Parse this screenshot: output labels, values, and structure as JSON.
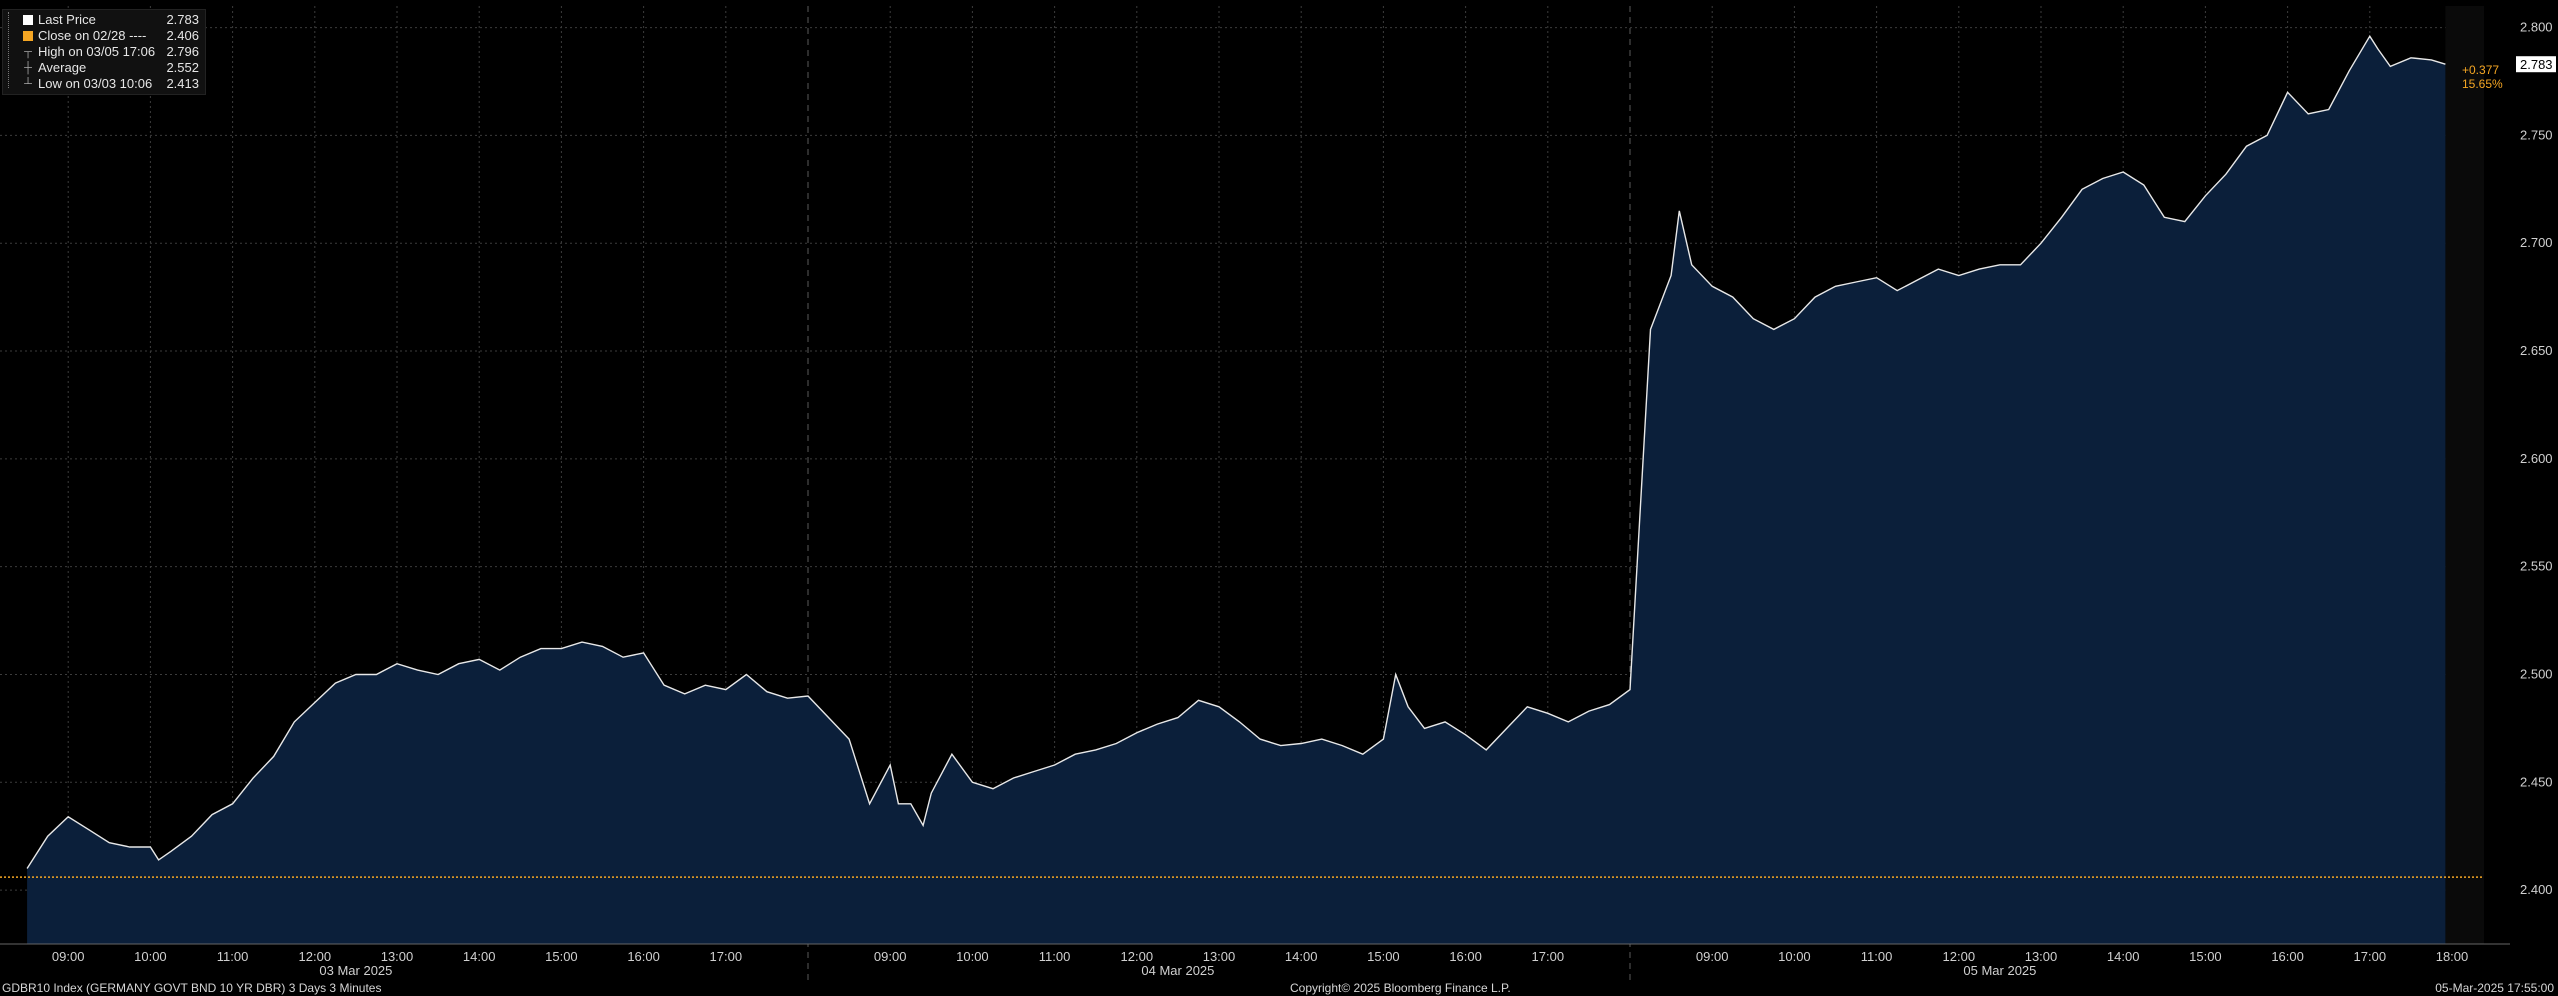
{
  "legend": {
    "items": [
      {
        "label": "Last Price",
        "value": "2.783",
        "marker": "white-square",
        "color": "#ffffff"
      },
      {
        "label": "Close on 02/28 ----",
        "value": "2.406",
        "marker": "orange-square",
        "color": "#f5a623"
      },
      {
        "label": "High on 03/05 17:06",
        "value": "2.796",
        "marker": "high-marker-icon"
      },
      {
        "label": "Average",
        "value": "2.552",
        "marker": "average-marker-icon"
      },
      {
        "label": "Low on 03/03 10:06",
        "value": "2.413",
        "marker": "low-marker-icon"
      }
    ]
  },
  "last_price_tag": "2.783",
  "change_tag": {
    "abs": "+0.377",
    "pct": "15.65%",
    "color": "#f5a623"
  },
  "footer": {
    "left": "GDBR10 Index (GERMANY GOVT BND 10 YR DBR) 3 Days 3 Minutes",
    "center": "Copyright© 2025 Bloomberg Finance L.P.",
    "right": "05-Mar-2025 17:55:00"
  },
  "colors": {
    "background": "#000000",
    "area_fill": "#0b1f3a",
    "line": "#e8e8e8",
    "reference": "#f5a623",
    "grid": "#3c3c3c"
  },
  "chart_data": {
    "type": "area",
    "y_axis_side": "right",
    "ylim": [
      2.375,
      2.81
    ],
    "yticks": [
      "2.400",
      "2.450",
      "2.500",
      "2.550",
      "2.600",
      "2.650",
      "2.700",
      "2.750",
      "2.800"
    ],
    "reference_line": {
      "value": 2.406,
      "label": "Close on 02/28",
      "color": "#f5a623",
      "style": "dotted"
    },
    "grid": true,
    "days": [
      {
        "date": "03 Mar 2025",
        "ticks": [
          "09:00",
          "10:00",
          "11:00",
          "12:00",
          "13:00",
          "14:00",
          "15:00",
          "16:00",
          "17:00"
        ]
      },
      {
        "date": "04 Mar 2025",
        "ticks": [
          "09:00",
          "10:00",
          "11:00",
          "12:00",
          "13:00",
          "14:00",
          "15:00",
          "16:00",
          "17:00"
        ]
      },
      {
        "date": "05 Mar 2025",
        "ticks": [
          "09:00",
          "10:00",
          "11:00",
          "12:00",
          "13:00",
          "14:00",
          "15:00",
          "16:00",
          "17:00",
          "18:00"
        ]
      }
    ],
    "series": [
      {
        "values": [
          [
            [
              8.5,
              2.41
            ],
            [
              8.75,
              2.425
            ],
            [
              9.0,
              2.434
            ],
            [
              9.25,
              2.428
            ],
            [
              9.5,
              2.422
            ],
            [
              9.75,
              2.42
            ],
            [
              10.0,
              2.42
            ],
            [
              10.1,
              2.414
            ],
            [
              10.25,
              2.418
            ],
            [
              10.5,
              2.425
            ],
            [
              10.75,
              2.435
            ],
            [
              11.0,
              2.44
            ],
            [
              11.25,
              2.452
            ],
            [
              11.5,
              2.462
            ],
            [
              11.75,
              2.478
            ],
            [
              12.0,
              2.487
            ],
            [
              12.25,
              2.496
            ],
            [
              12.5,
              2.5
            ],
            [
              12.75,
              2.5
            ],
            [
              13.0,
              2.505
            ],
            [
              13.25,
              2.502
            ],
            [
              13.5,
              2.5
            ],
            [
              13.75,
              2.505
            ],
            [
              14.0,
              2.507
            ],
            [
              14.25,
              2.502
            ],
            [
              14.5,
              2.508
            ],
            [
              14.75,
              2.512
            ],
            [
              15.0,
              2.512
            ],
            [
              15.25,
              2.515
            ],
            [
              15.5,
              2.513
            ],
            [
              15.75,
              2.508
            ],
            [
              16.0,
              2.51
            ],
            [
              16.25,
              2.495
            ],
            [
              16.5,
              2.491
            ],
            [
              16.75,
              2.495
            ],
            [
              17.0,
              2.493
            ],
            [
              17.25,
              2.5
            ],
            [
              17.5,
              2.492
            ],
            [
              17.75,
              2.489
            ],
            [
              18.0,
              2.49
            ]
          ],
          [
            [
              8.5,
              2.47
            ],
            [
              8.75,
              2.44
            ],
            [
              9.0,
              2.458
            ],
            [
              9.1,
              2.44
            ],
            [
              9.25,
              2.44
            ],
            [
              9.4,
              2.43
            ],
            [
              9.5,
              2.445
            ],
            [
              9.75,
              2.463
            ],
            [
              10.0,
              2.45
            ],
            [
              10.25,
              2.447
            ],
            [
              10.5,
              2.452
            ],
            [
              10.75,
              2.455
            ],
            [
              11.0,
              2.458
            ],
            [
              11.25,
              2.463
            ],
            [
              11.5,
              2.465
            ],
            [
              11.75,
              2.468
            ],
            [
              12.0,
              2.473
            ],
            [
              12.25,
              2.477
            ],
            [
              12.5,
              2.48
            ],
            [
              12.75,
              2.488
            ],
            [
              13.0,
              2.485
            ],
            [
              13.25,
              2.478
            ],
            [
              13.5,
              2.47
            ],
            [
              13.75,
              2.467
            ],
            [
              14.0,
              2.468
            ],
            [
              14.25,
              2.47
            ],
            [
              14.5,
              2.467
            ],
            [
              14.75,
              2.463
            ],
            [
              15.0,
              2.47
            ],
            [
              15.15,
              2.5
            ],
            [
              15.3,
              2.485
            ],
            [
              15.5,
              2.475
            ],
            [
              15.75,
              2.478
            ],
            [
              16.0,
              2.472
            ],
            [
              16.25,
              2.465
            ],
            [
              16.5,
              2.475
            ],
            [
              16.75,
              2.485
            ],
            [
              17.0,
              2.482
            ],
            [
              17.25,
              2.478
            ],
            [
              17.5,
              2.483
            ],
            [
              17.75,
              2.486
            ],
            [
              18.0,
              2.493
            ]
          ],
          [
            [
              8.25,
              2.66
            ],
            [
              8.5,
              2.685
            ],
            [
              8.6,
              2.715
            ],
            [
              8.75,
              2.69
            ],
            [
              9.0,
              2.68
            ],
            [
              9.25,
              2.675
            ],
            [
              9.5,
              2.665
            ],
            [
              9.75,
              2.66
            ],
            [
              10.0,
              2.665
            ],
            [
              10.25,
              2.675
            ],
            [
              10.5,
              2.68
            ],
            [
              10.75,
              2.682
            ],
            [
              11.0,
              2.684
            ],
            [
              11.25,
              2.678
            ],
            [
              11.5,
              2.683
            ],
            [
              11.75,
              2.688
            ],
            [
              12.0,
              2.685
            ],
            [
              12.25,
              2.688
            ],
            [
              12.5,
              2.69
            ],
            [
              12.75,
              2.69
            ],
            [
              13.0,
              2.7
            ],
            [
              13.25,
              2.712
            ],
            [
              13.5,
              2.725
            ],
            [
              13.75,
              2.73
            ],
            [
              14.0,
              2.733
            ],
            [
              14.25,
              2.727
            ],
            [
              14.5,
              2.712
            ],
            [
              14.75,
              2.71
            ],
            [
              15.0,
              2.722
            ],
            [
              15.25,
              2.732
            ],
            [
              15.5,
              2.745
            ],
            [
              15.75,
              2.75
            ],
            [
              16.0,
              2.77
            ],
            [
              16.25,
              2.76
            ],
            [
              16.5,
              2.762
            ],
            [
              16.75,
              2.78
            ],
            [
              17.0,
              2.796
            ],
            [
              17.1,
              2.79
            ],
            [
              17.25,
              2.782
            ],
            [
              17.5,
              2.786
            ],
            [
              17.75,
              2.785
            ],
            [
              17.92,
              2.783
            ]
          ]
        ]
      }
    ]
  }
}
